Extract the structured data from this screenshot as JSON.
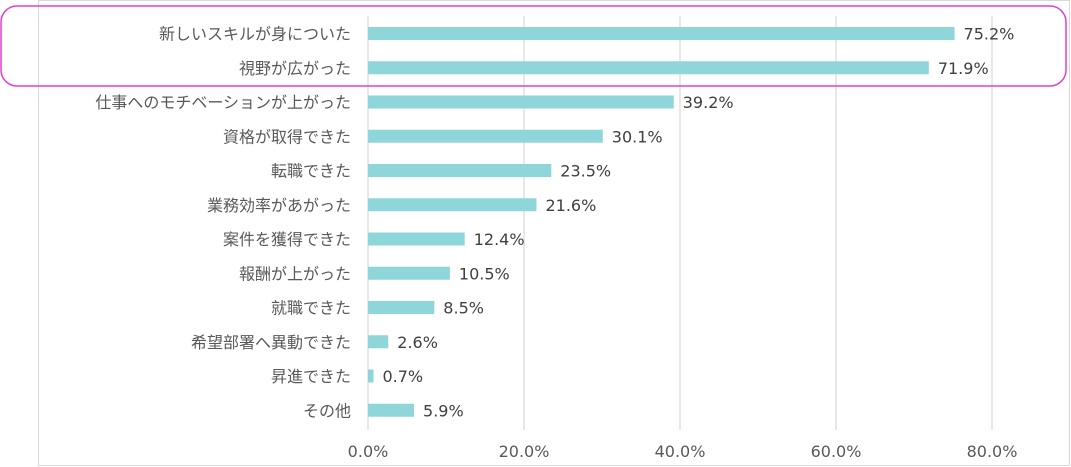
{
  "chart_data": {
    "type": "bar",
    "orientation": "horizontal",
    "categories": [
      "新しいスキルが身についた",
      "視野が広がった",
      "仕事へのモチベーションが上がった",
      "資格が取得できた",
      "転職できた",
      "業務効率があがった",
      "案件を獲得できた",
      "報酬が上がった",
      "就職できた",
      "希望部署へ異動できた",
      "昇進できた",
      "その他"
    ],
    "values": [
      75.2,
      71.9,
      39.2,
      30.1,
      23.5,
      21.6,
      12.4,
      10.5,
      8.5,
      2.6,
      0.7,
      5.9
    ],
    "value_labels": [
      "75.2%",
      "71.9%",
      "39.2%",
      "30.1%",
      "23.5%",
      "21.6%",
      "12.4%",
      "10.5%",
      "8.5%",
      "2.6%",
      "0.7%",
      "5.9%"
    ],
    "xlim": [
      0,
      80
    ],
    "xticks": [
      0,
      20,
      40,
      60,
      80
    ],
    "xtick_labels": [
      "0.0%",
      "20.0%",
      "40.0%",
      "60.0%",
      "80.0%"
    ],
    "grid": "vertical",
    "highlight": {
      "categories": [
        "新しいスキルが身についた",
        "視野が広がった"
      ],
      "shape": "rounded-rectangle"
    }
  },
  "colors": {
    "bar": "#8fd6db",
    "grid": "#d9d9d9",
    "frame": "#d9d9d9",
    "highlight": "#e040d0"
  }
}
